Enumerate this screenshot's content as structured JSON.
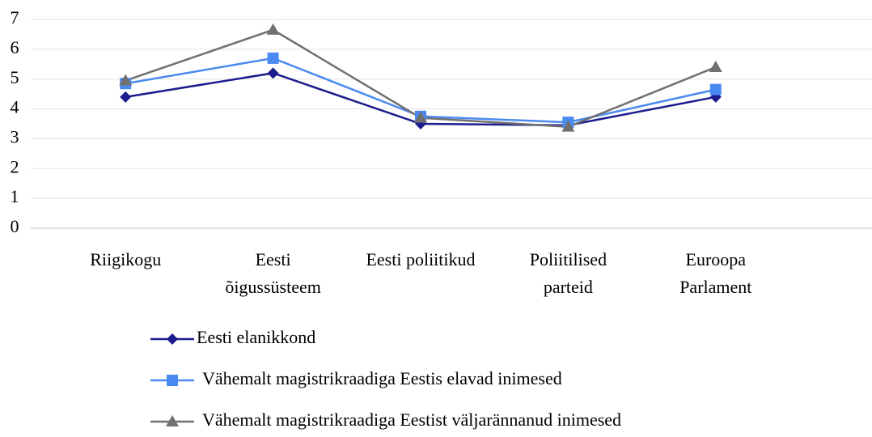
{
  "chart_data": {
    "type": "line",
    "categories": [
      "Riigikogu",
      "Eesti\nõigussüsteem",
      "Eesti poliitikud",
      "Poliitilised\nparteid",
      "Euroopa\nParlament"
    ],
    "series": [
      {
        "name": "Eesti elanikkond",
        "color": "#1c1c8e",
        "marker": "diamond",
        "values": [
          4.4,
          5.2,
          3.5,
          3.45,
          4.4
        ]
      },
      {
        "name": "Vähemalt magistrikraadiga Eestis elavad inimesed",
        "color": "#4a8af0",
        "marker": "square",
        "values": [
          4.85,
          5.7,
          3.75,
          3.55,
          4.65
        ]
      },
      {
        "name": "Vähemalt magistrikraadiga Eestist väljarännanud inimesed",
        "color": "#707070",
        "marker": "triangle",
        "values": [
          4.95,
          6.65,
          3.7,
          3.4,
          5.4
        ]
      }
    ],
    "ylim": [
      0,
      7
    ],
    "yticks": [
      0,
      1,
      2,
      3,
      4,
      5,
      6,
      7
    ],
    "grid": true
  }
}
